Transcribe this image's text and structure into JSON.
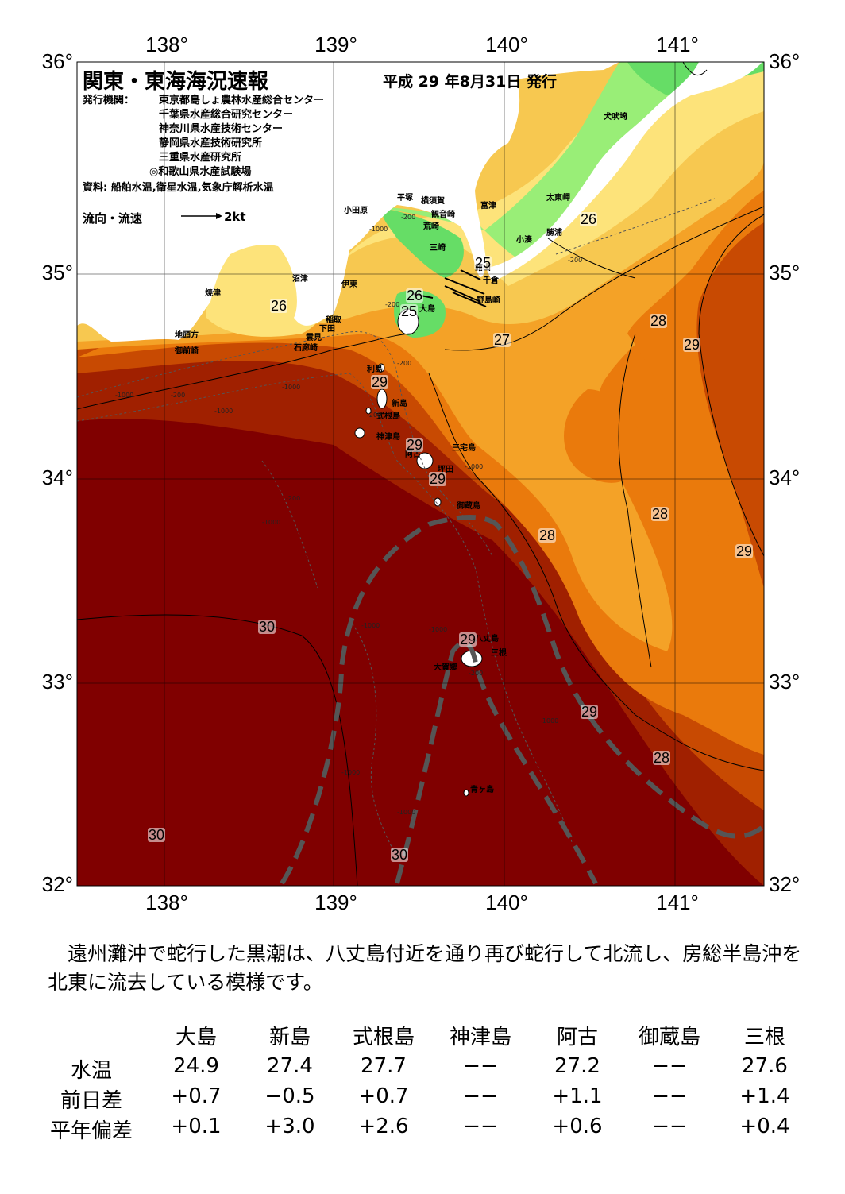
{
  "title": "関東・東海海況速報",
  "issue_date": "平成 29 年8月31日 発行",
  "issuers_label": "発行機関：",
  "issuers": [
    "東京都島しょ農林水産総合センター",
    "千葉県水産総合研究センター",
    "神奈川県水産技術センター",
    "静岡県水産技術研究所",
    "三重県水産研究所",
    "◎和歌山県水産試験場"
  ],
  "sources": "資料: 船舶水温,衛星水温,気象庁解析水温",
  "flow_label": "流向・流速",
  "flow_scale": "2kt",
  "colors": {
    "t24": "#3cb44b",
    "t25": "#66dd66",
    "t25b": "#99ee77",
    "t26": "#fde37a",
    "t26b": "#f7c850",
    "t27": "#f4a227",
    "t28": "#ea7a0c",
    "t28b": "#c84a02",
    "t29": "#a02000",
    "t30": "#800000",
    "land": "#ffffff",
    "kuroshio": "#555555"
  },
  "axes": {
    "lon_labels": [
      "138°",
      "139°",
      "140°",
      "141°"
    ],
    "lat_labels": [
      "36°",
      "35°",
      "34°",
      "33°",
      "32°"
    ]
  },
  "place_names": [
    "犬吠埼",
    "太東岬",
    "勝浦",
    "小湊",
    "富津",
    "横須賀",
    "観音崎",
    "平塚",
    "小田原",
    "荒崎",
    "三崎",
    "館山",
    "千倉",
    "野島崎",
    "大島",
    "沼津",
    "伊東",
    "焼津",
    "稲取",
    "下田",
    "雲見",
    "石廊崎",
    "地頭方",
    "御前崎",
    "利島",
    "新島",
    "式根島",
    "神津島",
    "三宅島",
    "阿古",
    "坪田",
    "御蔵島",
    "八丈島",
    "大賀郷",
    "三根",
    "青ヶ島"
  ],
  "temperature_labels": [
    "25",
    "26",
    "25",
    "26",
    "27",
    "28",
    "29",
    "26",
    "29",
    "29",
    "29",
    "28",
    "28",
    "29",
    "30",
    "29",
    "28",
    "29",
    "30",
    "30"
  ],
  "depth_labels": [
    "-200",
    "-1000",
    "-200",
    "-1000",
    "-200",
    "-1000",
    "-200",
    "-1000",
    "-200",
    "-1000",
    "-200",
    "-1000",
    "-1000",
    "-1000",
    "-200",
    "-1000",
    "-1000",
    "-1000",
    "-200"
  ],
  "summary": "遠州灘沖で蛇行した黒潮は、八丈島付近を通り再び蛇行して北流し、房総半島沖を北東に流去している模様です。",
  "station_table": {
    "columns": [
      "大島",
      "新島",
      "式根島",
      "神津島",
      "阿古",
      "御蔵島",
      "三根"
    ],
    "rows": [
      {
        "label": "水温",
        "values": [
          "24.9",
          "27.4",
          "27.7",
          "−−",
          "27.2",
          "−−",
          "27.6"
        ]
      },
      {
        "label": "前日差",
        "values": [
          "+0.7",
          "−0.5",
          "+0.7",
          "−−",
          "+1.1",
          "−−",
          "+1.4"
        ]
      },
      {
        "label": "平年偏差",
        "values": [
          "+0.1",
          "+3.0",
          "+2.6",
          "−−",
          "+0.6",
          "−−",
          "+0.4"
        ]
      }
    ]
  }
}
